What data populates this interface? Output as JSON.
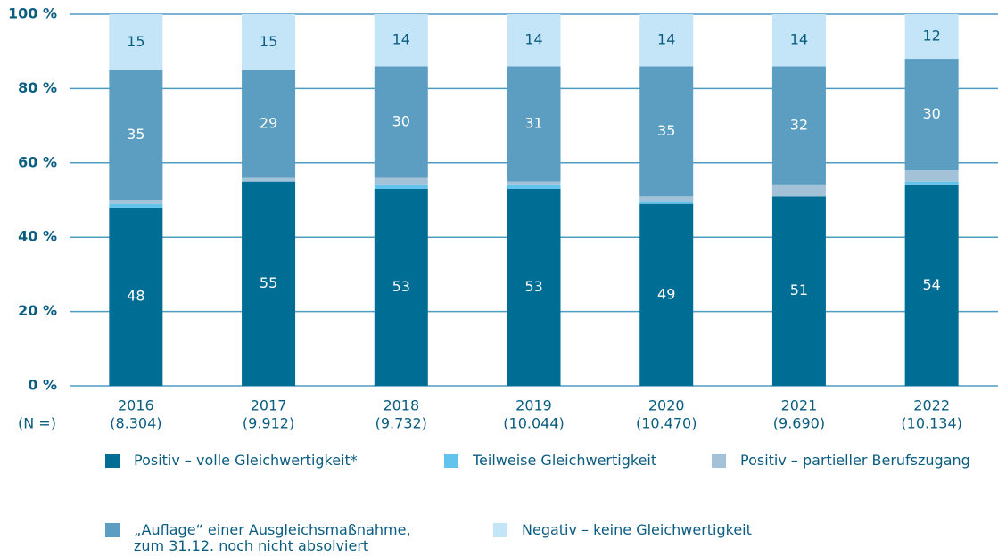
{
  "chart_data": {
    "type": "stacked_bar",
    "categories": [
      "2016",
      "2017",
      "2018",
      "2019",
      "2020",
      "2021",
      "2022"
    ],
    "n_label": "(N =)",
    "n": [
      "(8.304)",
      "(9.912)",
      "(9.732)",
      "(10.044)",
      "(10.470)",
      "(9.690)",
      "(10.134)"
    ],
    "series": [
      {
        "name": "Positiv – volle Gleichwertigkeit*",
        "color": "#006d95",
        "label_color": "#ffffff",
        "values": [
          48,
          55,
          53,
          53,
          49,
          51,
          54
        ],
        "labeled": true
      },
      {
        "name": "Teilweise Gleichwertigkeit",
        "color": "#62c3ec",
        "values": [
          1,
          0,
          1,
          1,
          0.5,
          0,
          1
        ],
        "labeled": false
      },
      {
        "name": "Positiv – partieller Berufszugang",
        "color": "#a3c2d8",
        "values": [
          1,
          1,
          2,
          1,
          1.5,
          3,
          3
        ],
        "labeled": false
      },
      {
        "name": "„Auflage“ einer Ausgleichsmaßnahme, zum 31.12. noch nicht absolviert",
        "color": "#5b9ec1",
        "label_color": "#ffffff",
        "values": [
          35,
          29,
          30,
          31,
          35,
          32,
          30
        ],
        "labeled": true
      },
      {
        "name": "Negativ – keine Gleichwertigkeit",
        "color": "#c4e5f7",
        "label_color": "#0a5d80",
        "values": [
          15,
          15,
          14,
          14,
          14,
          14,
          12
        ],
        "labeled": true
      }
    ],
    "ylim": [
      0,
      100
    ],
    "yticks": [
      {
        "value": 0,
        "label": "0 %"
      },
      {
        "value": 20,
        "label": "20 %"
      },
      {
        "value": 40,
        "label": "40 %"
      },
      {
        "value": 60,
        "label": "60 %"
      },
      {
        "value": 80,
        "label": "80 %"
      },
      {
        "value": 100,
        "label": "100 %"
      }
    ],
    "grid": true
  }
}
